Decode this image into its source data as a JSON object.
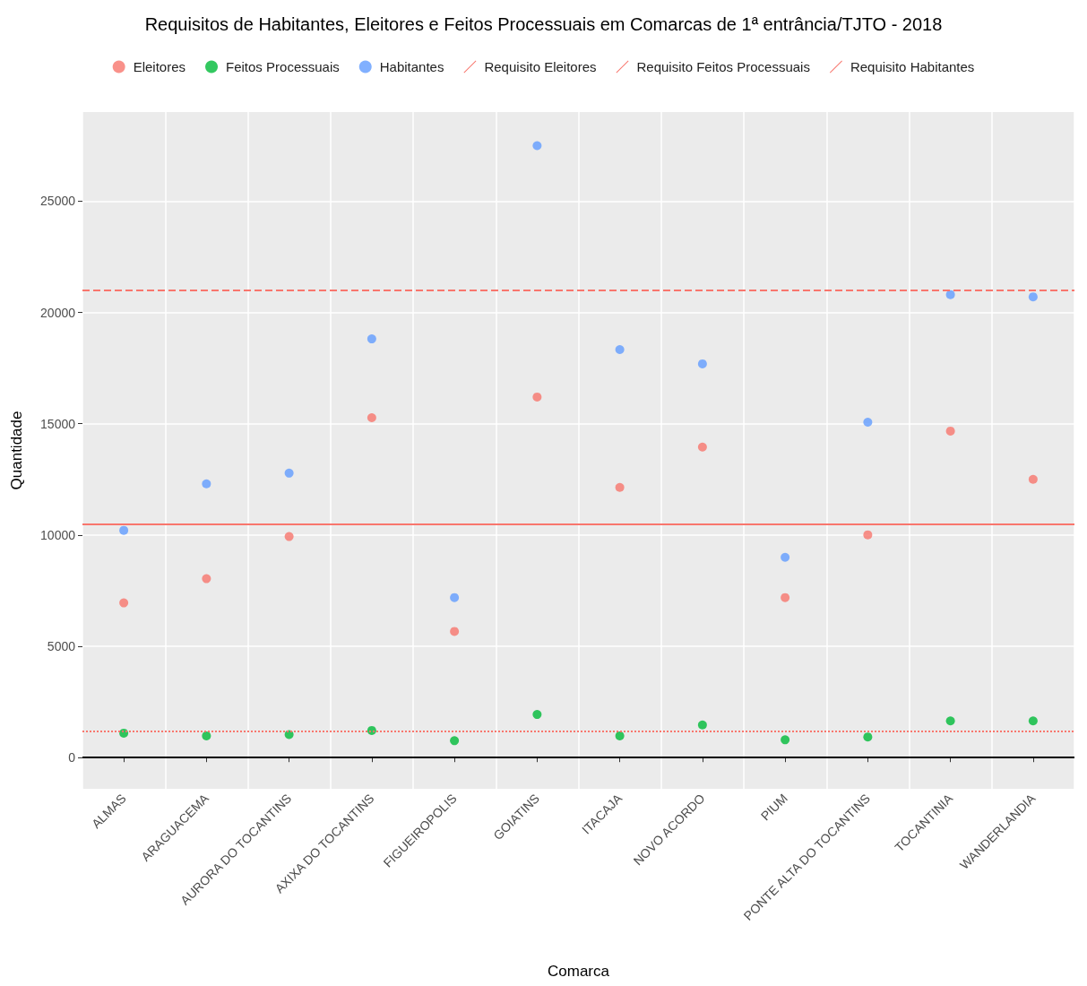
{
  "chart_data": {
    "type": "scatter",
    "title": "Requisitos de Habitantes, Eleitores e Feitos Processuais em Comarcas de 1ª entrância/TJTO - 2018",
    "xlabel": "Comarca",
    "ylabel": "Quantidade",
    "categories": [
      "ALMAS",
      "ARAGUACEMA",
      "AURORA DO TOCANTINS",
      "AXIXA DO TOCANTINS",
      "FIGUEIROPOLIS",
      "GOIATINS",
      "ITACAJA",
      "NOVO ACORDO",
      "PIUM",
      "PONTE ALTA DO TOCANTINS",
      "TOCANTINIA",
      "WANDERLANDIA"
    ],
    "series": [
      {
        "name": "Eleitores",
        "color": "#f8766d",
        "values": [
          6950,
          8040,
          9930,
          15270,
          5670,
          16200,
          12140,
          13950,
          7190,
          10010,
          14670,
          12500
        ]
      },
      {
        "name": "Feitos Processuais",
        "color": "#00ba38",
        "values": [
          1100,
          980,
          1040,
          1220,
          760,
          1940,
          980,
          1470,
          800,
          930,
          1650,
          1650
        ]
      },
      {
        "name": "Habitantes",
        "color": "#619cff",
        "values": [
          10210,
          12300,
          12780,
          18810,
          7190,
          27490,
          18330,
          17690,
          9000,
          15070,
          20800,
          20700
        ]
      }
    ],
    "ref_lines": [
      {
        "axis": "y",
        "value": 10500,
        "label": "Requisito Eleitores",
        "color": "#f8766d",
        "line_style": "solid"
      },
      {
        "axis": "y",
        "value": 1200,
        "label": "Requisito Feitos Processuais",
        "color": "#f8766d",
        "line_style": "dotted"
      },
      {
        "axis": "y",
        "value": 21000,
        "label": "Requisito Habitantes",
        "color": "#f8766d",
        "line_style": "dashed"
      },
      {
        "axis": "y",
        "value": 0,
        "color": "#000000",
        "line_style": "solid"
      }
    ],
    "ylim": [
      -1400,
      29000
    ],
    "yticks": [
      0,
      5000,
      10000,
      15000,
      20000,
      25000
    ],
    "grid": true,
    "legend": "top",
    "marker": "circle"
  }
}
